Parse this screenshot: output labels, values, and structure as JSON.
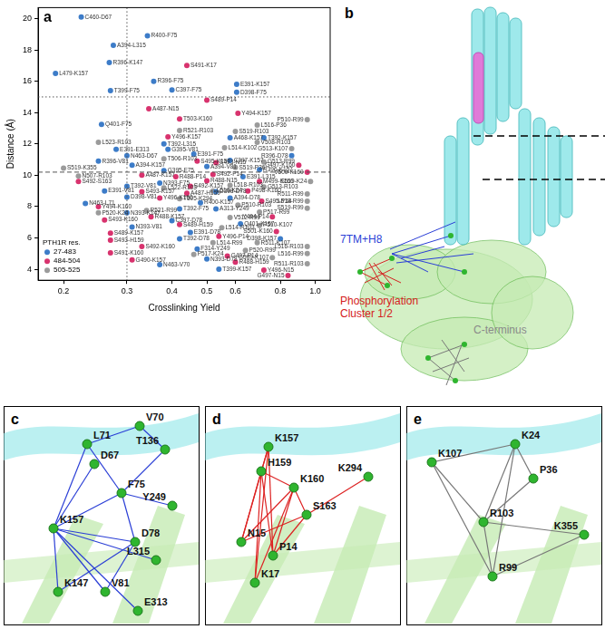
{
  "chart_data": {
    "type": "scatter",
    "panel_label": "a",
    "x_label": "Crosslinking Yield",
    "y_label": "Distance (Å)",
    "log": "x",
    "grid": false,
    "xlim": [
      0.17,
      1.1
    ],
    "xticks": [
      0.2,
      0.3,
      0.4,
      0.5,
      0.6,
      0.8,
      {
        "value": 1,
        "label": "1.0"
      }
    ],
    "ylim": [
      3.3,
      20.7
    ],
    "yticks": [
      4,
      6,
      8,
      10,
      12,
      14,
      16,
      18,
      20
    ],
    "legend": "bottom-left",
    "legend_title": "PTH1R res.",
    "reference_lines": [
      {
        "axis": "x",
        "value": 0.3,
        "line_style": "dotted"
      },
      {
        "axis": "y",
        "value": 15,
        "line_style": "dotted"
      },
      {
        "axis": "y",
        "value": 10.2,
        "line_style": "dashed"
      }
    ],
    "series": [
      {
        "name": "27-483",
        "color": "#3d7cc8",
        "marker": "circle",
        "points": [
          {
            "label": "C460-D67",
            "x": 0.224,
            "y": 20.1
          },
          {
            "label": "R400-F75",
            "x": 0.342,
            "y": 18.9
          },
          {
            "label": "A394-L315",
            "x": 0.275,
            "y": 18.3
          },
          {
            "label": "R396-K147",
            "x": 0.268,
            "y": 17.2
          },
          {
            "label": "L479-K157",
            "x": 0.19,
            "y": 16.5
          },
          {
            "label": "R396-F75",
            "x": 0.356,
            "y": 16.0
          },
          {
            "label": "E391-K157",
            "x": 0.605,
            "y": 15.8
          },
          {
            "label": "T399-F75",
            "x": 0.27,
            "y": 15.4
          },
          {
            "label": "C397-F75",
            "x": 0.4,
            "y": 15.45
          },
          {
            "label": "D398-F75",
            "x": 0.605,
            "y": 15.3
          },
          {
            "label": "Q401-F75",
            "x": 0.255,
            "y": 13.25
          },
          {
            "label": "T392-L315",
            "x": 0.38,
            "y": 12.0
          },
          {
            "label": "A468-K157",
            "x": 0.58,
            "y": 12.4
          },
          {
            "label": "T392-K157",
            "x": 0.72,
            "y": 12.4
          },
          {
            "label": "E391-E313",
            "x": 0.28,
            "y": 11.65
          },
          {
            "label": "N463-D67",
            "x": 0.3,
            "y": 11.25
          },
          {
            "label": "G395-V81",
            "x": 0.39,
            "y": 11.65
          },
          {
            "label": "E391-F75",
            "x": 0.46,
            "y": 11.35
          },
          {
            "label": "C397-K157",
            "x": 0.58,
            "y": 10.95
          },
          {
            "label": "R396-K157",
            "x": 0.7,
            "y": 10.35
          },
          {
            "label": "R396-D78",
            "x": 0.86,
            "y": 11.25
          },
          {
            "label": "A394-V81",
            "x": 0.5,
            "y": 10.55
          },
          {
            "label": "E391-L315",
            "x": 0.63,
            "y": 9.9
          },
          {
            "label": "R396-V81",
            "x": 0.25,
            "y": 10.9
          },
          {
            "label": "G395-F75",
            "x": 0.38,
            "y": 10.3
          },
          {
            "label": "A394-K157",
            "x": 0.31,
            "y": 10.65
          },
          {
            "label": "N393-F75",
            "x": 0.37,
            "y": 9.5
          },
          {
            "label": "T392-V81",
            "x": 0.3,
            "y": 9.3
          },
          {
            "label": "E391-V81",
            "x": 0.26,
            "y": 9.0
          },
          {
            "label": "D398-V81",
            "x": 0.3,
            "y": 8.6
          },
          {
            "label": "D398-D78",
            "x": 0.53,
            "y": 8.95
          },
          {
            "label": "R400-K157",
            "x": 0.48,
            "y": 8.25
          },
          {
            "label": "A394-D78",
            "x": 0.58,
            "y": 8.55
          },
          {
            "label": "T392-F75",
            "x": 0.42,
            "y": 7.85
          },
          {
            "label": "A313-Y249",
            "x": 0.53,
            "y": 7.85
          },
          {
            "label": "C397-D78",
            "x": 0.4,
            "y": 7.1
          },
          {
            "label": "N393-K147",
            "x": 0.3,
            "y": 7.6
          },
          {
            "label": "Q401-K157",
            "x": 0.62,
            "y": 6.9
          },
          {
            "label": "N393-V81",
            "x": 0.31,
            "y": 6.7
          },
          {
            "label": "E391-D78",
            "x": 0.45,
            "y": 6.35
          },
          {
            "label": "T392-D78",
            "x": 0.42,
            "y": 5.95
          },
          {
            "label": "D398-K157",
            "x": 0.8,
            "y": 5.95
          },
          {
            "label": "F314-Y249",
            "x": 0.47,
            "y": 5.3
          },
          {
            "label": "N393-D78",
            "x": 0.5,
            "y": 4.65
          },
          {
            "label": "N463-V70",
            "x": 0.37,
            "y": 4.3
          },
          {
            "label": "T399-K157",
            "x": 0.54,
            "y": 4.0
          },
          {
            "label": "N463-L71",
            "x": 0.23,
            "y": 8.2
          }
        ]
      },
      {
        "name": "484-504",
        "color": "#d8336e",
        "marker": "circle",
        "points": [
          {
            "label": "S491-K17",
            "x": 0.44,
            "y": 17.0
          },
          {
            "label": "S489-P14",
            "x": 0.5,
            "y": 14.8
          },
          {
            "label": "A487-N15",
            "x": 0.345,
            "y": 14.25
          },
          {
            "label": "Y494-K157",
            "x": 0.61,
            "y": 13.95
          },
          {
            "label": "T503-K160",
            "x": 0.42,
            "y": 13.6
          },
          {
            "label": "Y496-K157",
            "x": 0.39,
            "y": 12.45
          },
          {
            "label": "S495-K157",
            "x": 0.47,
            "y": 10.9
          },
          {
            "label": "R488-P14",
            "x": 0.41,
            "y": 9.9
          },
          {
            "label": "A487-K157",
            "x": 0.33,
            "y": 10.0
          },
          {
            "label": "S492-S163",
            "x": 0.22,
            "y": 9.6
          },
          {
            "label": "R488-N15",
            "x": 0.5,
            "y": 9.65
          },
          {
            "label": "S492-K157",
            "x": 0.45,
            "y": 9.3
          },
          {
            "label": "S492-P14",
            "x": 0.52,
            "y": 10.05
          },
          {
            "label": "S493-N15",
            "x": 0.53,
            "y": 10.8
          },
          {
            "label": "A487-H159",
            "x": 0.44,
            "y": 8.85
          },
          {
            "label": "Y494-K160",
            "x": 0.25,
            "y": 8.0
          },
          {
            "label": "Y496-K160",
            "x": 0.37,
            "y": 8.55
          },
          {
            "label": "S493-K157",
            "x": 0.33,
            "y": 8.95
          },
          {
            "label": "P498-K160",
            "x": 0.65,
            "y": 9.0
          },
          {
            "label": "S495-P14",
            "x": 0.71,
            "y": 8.35
          },
          {
            "label": "Y494-P14",
            "x": 0.76,
            "y": 7.35
          },
          {
            "label": "R488-K157",
            "x": 0.35,
            "y": 7.35
          },
          {
            "label": "S489-H159",
            "x": 0.42,
            "y": 6.85
          },
          {
            "label": "S493-K160",
            "x": 0.26,
            "y": 7.15
          },
          {
            "label": "S489-K157",
            "x": 0.27,
            "y": 6.3
          },
          {
            "label": "Y496-P14",
            "x": 0.54,
            "y": 6.1
          },
          {
            "label": "S501-K160",
            "x": 0.78,
            "y": 6.4
          },
          {
            "label": "S493-H159",
            "x": 0.27,
            "y": 5.85
          },
          {
            "label": "S492-K160",
            "x": 0.33,
            "y": 5.45
          },
          {
            "label": "S491-K160",
            "x": 0.27,
            "y": 5.05
          },
          {
            "label": "G490-K157",
            "x": 0.31,
            "y": 4.6
          },
          {
            "label": "G497-P14",
            "x": 0.57,
            "y": 4.85
          },
          {
            "label": "R488-H159",
            "x": 0.6,
            "y": 4.45
          },
          {
            "label": "Y496-N15",
            "x": 0.72,
            "y": 3.95
          },
          {
            "label": "G497-N15",
            "x": 0.84,
            "y": 3.6
          },
          {
            "label": "G497-K160",
            "x": 0.9,
            "y": 10.65
          },
          {
            "label": "V500-K160",
            "x": 0.95,
            "y": 10.2
          },
          {
            "label": "M499-K160",
            "x": 0.7,
            "y": 9.6
          }
        ]
      },
      {
        "name": "505-525",
        "color": "#9b9b9b",
        "marker": "circle",
        "points": [
          {
            "label": "L516-P36",
            "x": 0.69,
            "y": 13.2
          },
          {
            "label": "P510-R99",
            "x": 0.95,
            "y": 13.55
          },
          {
            "label": "R521-R103",
            "x": 0.42,
            "y": 12.85
          },
          {
            "label": "S519-R103",
            "x": 0.6,
            "y": 12.8
          },
          {
            "label": "L523-R103",
            "x": 0.25,
            "y": 12.1
          },
          {
            "label": "L514-K102",
            "x": 0.56,
            "y": 11.75
          },
          {
            "label": "G513-K107",
            "x": 0.86,
            "y": 11.7
          },
          {
            "label": "V508-R103",
            "x": 0.69,
            "y": 12.1
          },
          {
            "label": "S519-K355",
            "x": 0.2,
            "y": 10.45
          },
          {
            "label": "N507-R103",
            "x": 0.22,
            "y": 9.95
          },
          {
            "label": "T506-R103",
            "x": 0.38,
            "y": 11.05
          },
          {
            "label": "L522-R103",
            "x": 0.38,
            "y": 9.2
          },
          {
            "label": "L518-R103",
            "x": 0.58,
            "y": 9.35
          },
          {
            "label": "L516-K24",
            "x": 0.52,
            "y": 9.0
          },
          {
            "label": "G513-R103",
            "x": 0.72,
            "y": 9.25
          },
          {
            "label": "S519-K24",
            "x": 0.97,
            "y": 9.6
          },
          {
            "label": "G513-R99",
            "x": 0.72,
            "y": 10.85
          },
          {
            "label": "S519-P36",
            "x": 0.6,
            "y": 10.5
          },
          {
            "label": "T505-K294",
            "x": 0.42,
            "y": 8.5
          },
          {
            "label": "R521-R99",
            "x": 0.34,
            "y": 7.75
          },
          {
            "label": "P520-K24",
            "x": 0.25,
            "y": 7.6
          },
          {
            "label": "R511-R99",
            "x": 0.95,
            "y": 8.8
          },
          {
            "label": "L518-R99",
            "x": 0.95,
            "y": 8.35
          },
          {
            "label": "S519-R99",
            "x": 0.95,
            "y": 7.9
          },
          {
            "label": "P517-R99",
            "x": 0.7,
            "y": 7.65
          },
          {
            "label": "P510-R103",
            "x": 0.61,
            "y": 8.1
          },
          {
            "label": "V512-R99",
            "x": 0.58,
            "y": 7.3
          },
          {
            "label": "L514-R103",
            "x": 0.55,
            "y": 6.65
          },
          {
            "label": "P510-K107",
            "x": 0.7,
            "y": 6.8
          },
          {
            "label": "R511-K107",
            "x": 0.69,
            "y": 5.7
          },
          {
            "label": "L514-R99",
            "x": 0.52,
            "y": 5.7
          },
          {
            "label": "L516-R103",
            "x": 0.95,
            "y": 5.45
          },
          {
            "label": "P517-K24",
            "x": 0.46,
            "y": 4.95
          },
          {
            "label": "P520-R99",
            "x": 0.64,
            "y": 5.2
          },
          {
            "label": "L516-R99",
            "x": 0.95,
            "y": 5.0
          },
          {
            "label": "G509-K107",
            "x": 0.76,
            "y": 4.75
          },
          {
            "label": "R511-R103",
            "x": 0.95,
            "y": 4.35
          }
        ]
      }
    ]
  },
  "diagrams": [
    {
      "panel_label": "b",
      "labels": [
        {
          "text": [
            "7TM+H8"
          ],
          "color": "#2b3fd6"
        },
        {
          "text": [
            "Phosphorylation",
            "Cluster 1/2"
          ],
          "color": "#d42020"
        },
        {
          "text": [
            "C-terminus"
          ],
          "color": "#8a8a8a"
        }
      ]
    },
    {
      "panel_label": "c",
      "color": "#2b3fd6",
      "nodes": [
        "V70",
        "L71",
        "D67",
        "T136",
        "F75",
        "Y249",
        "K157",
        "D78",
        "L315",
        "K147",
        "V81",
        "E313"
      ],
      "edges": [
        [
          "K157",
          "D67"
        ],
        [
          "K157",
          "L71"
        ],
        [
          "K157",
          "F75"
        ],
        [
          "K157",
          "D78"
        ],
        [
          "K157",
          "V81"
        ],
        [
          "K157",
          "L315"
        ],
        [
          "K157",
          "E313"
        ],
        [
          "K157",
          "K147"
        ],
        [
          "D78",
          "F75"
        ],
        [
          "D78",
          "V81"
        ],
        [
          "D78",
          "K147"
        ],
        [
          "F75",
          "L71"
        ],
        [
          "T136",
          "V70"
        ],
        [
          "F75",
          "Y249"
        ],
        [
          "T136",
          "F75"
        ],
        [
          "V70",
          "L71"
        ]
      ]
    },
    {
      "panel_label": "d",
      "color": "#dd2222",
      "nodes": [
        "K157",
        "H159",
        "K160",
        "K294",
        "S163",
        "N15",
        "P14",
        "K17"
      ],
      "edges": [
        [
          "K157",
          "N15"
        ],
        [
          "K157",
          "P14"
        ],
        [
          "K157",
          "K17"
        ],
        [
          "H159",
          "N15"
        ],
        [
          "H159",
          "P14"
        ],
        [
          "H159",
          "K17"
        ],
        [
          "K160",
          "N15"
        ],
        [
          "K160",
          "P14"
        ],
        [
          "K160",
          "K17"
        ],
        [
          "S163",
          "N15"
        ],
        [
          "S163",
          "P14"
        ],
        [
          "K157",
          "H159"
        ],
        [
          "H159",
          "K160"
        ],
        [
          "K294",
          "S163"
        ],
        [
          "K160",
          "S163"
        ]
      ]
    },
    {
      "panel_label": "e",
      "color": "#777777",
      "nodes": [
        "K24",
        "K107",
        "P36",
        "R103",
        "K355",
        "R99"
      ],
      "edges": [
        [
          "K107",
          "R103"
        ],
        [
          "K107",
          "K24"
        ],
        [
          "K24",
          "R103"
        ],
        [
          "K24",
          "P36"
        ],
        [
          "P36",
          "R103"
        ],
        [
          "R103",
          "R99"
        ],
        [
          "R99",
          "K107"
        ],
        [
          "K355",
          "R103"
        ],
        [
          "K355",
          "R99"
        ],
        [
          "K24",
          "R99"
        ]
      ]
    }
  ]
}
